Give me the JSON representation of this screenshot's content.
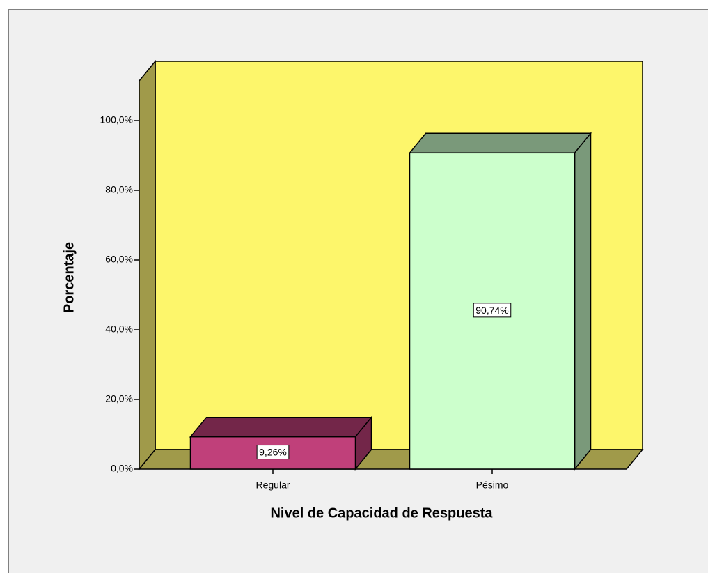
{
  "chart_data": {
    "type": "bar3d",
    "categories": [
      "Regular",
      "Pésimo"
    ],
    "values": [
      9.26,
      90.74
    ],
    "value_labels": [
      "9,26%",
      "90,74%"
    ],
    "colors": [
      "#c0407a",
      "#ccffcc"
    ],
    "x_label": "Nivel de Capacidad de Respuesta",
    "y_label": "Porcentaje",
    "ylim": [
      0,
      111.4
    ],
    "yticks": [
      {
        "value": 0,
        "label": "0,0%"
      },
      {
        "value": 20,
        "label": "20,0%"
      },
      {
        "value": 40,
        "label": "40,0%"
      },
      {
        "value": 60,
        "label": "60,0%"
      },
      {
        "value": 80,
        "label": "80,0%"
      },
      {
        "value": 100,
        "label": "100,0%"
      }
    ]
  }
}
